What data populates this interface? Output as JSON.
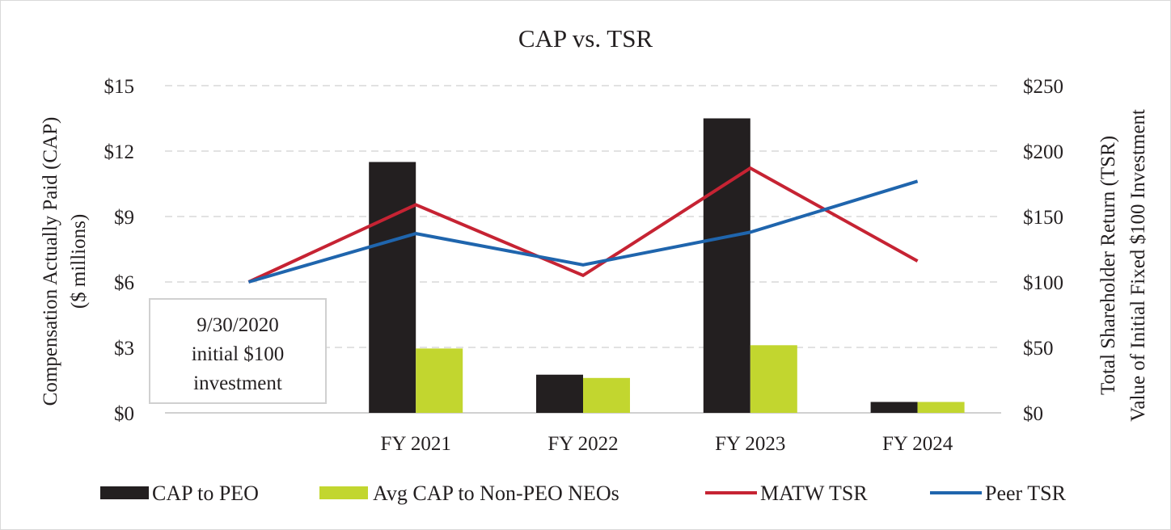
{
  "chart_data": {
    "type": "bar",
    "title": "CAP vs. TSR",
    "categories": [
      "",
      "FY 2021",
      "FY 2022",
      "FY 2023",
      "FY 2024"
    ],
    "bar_series": [
      {
        "name": "CAP to PEO",
        "color": "#231f20",
        "values": [
          null,
          11.5,
          1.75,
          13.5,
          0.5
        ]
      },
      {
        "name": "Avg CAP to Non-PEO NEOs",
        "color": "#c2d62f",
        "values": [
          null,
          2.95,
          1.6,
          3.1,
          0.5
        ]
      }
    ],
    "line_series": [
      {
        "name": "MATW TSR",
        "color": "#c62333",
        "values": [
          100,
          159,
          105,
          187,
          116
        ]
      },
      {
        "name": "Peer TSR",
        "color": "#1f65ad",
        "values": [
          100,
          137,
          113,
          138,
          177
        ]
      }
    ],
    "y_left": {
      "label_line1": "Compensation Actually Paid (CAP)",
      "label_line2": "($ millions)",
      "ylim": [
        0,
        15
      ],
      "ticks": [
        "$0",
        "$3",
        "$6",
        "$9",
        "$12",
        "$15"
      ]
    },
    "y_right": {
      "label_line1": "Total Shareholder Return (TSR)",
      "label_line2": "Value of Initial Fixed $100 Investment",
      "ylim": [
        0,
        250
      ],
      "ticks": [
        "$0",
        "$50",
        "$100",
        "$150",
        "$200",
        "$250"
      ]
    },
    "grid": true,
    "legend_position": "bottom",
    "legend": [
      "CAP to PEO",
      "Avg CAP to Non-PEO NEOs",
      "MATW TSR",
      "Peer TSR"
    ],
    "annotation": [
      "9/30/2020",
      "initial $100",
      "investment"
    ]
  }
}
